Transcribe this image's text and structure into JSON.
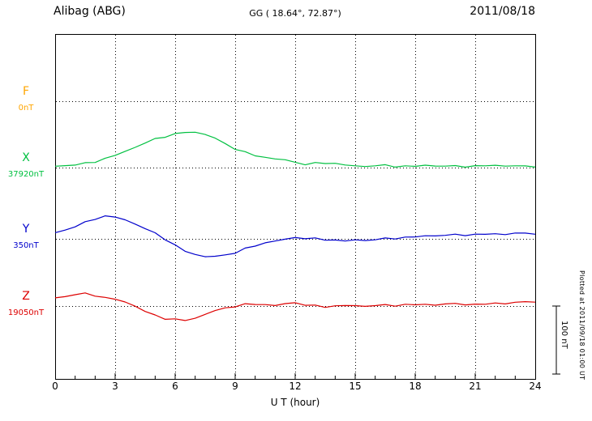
{
  "header": {
    "station": "Alibag (ABG)",
    "coords": "GG ( 18.64°,  72.87°)",
    "date": "2011/08/18"
  },
  "axis": {
    "xlabel": "U T (hour)",
    "ticks": [
      "0",
      "3",
      "6",
      "9",
      "12",
      "15",
      "18",
      "21",
      "24"
    ]
  },
  "channels": [
    {
      "label": "F",
      "value": "0nT",
      "color": "#FFA500"
    },
    {
      "label": "X",
      "value": "37920nT",
      "color": "#00C040"
    },
    {
      "label": "Y",
      "value": "350nT",
      "color": "#0000CC"
    },
    {
      "label": "Z",
      "value": "19050nT",
      "color": "#DD0000"
    }
  ],
  "scale_bar": {
    "label": "100 nT"
  },
  "footnote": "Plotted at 2011/09/18 01:00 UT",
  "chart_data": {
    "type": "line",
    "title": "Alibag (ABG) magnetogram 2011/08/18",
    "xlabel": "U T (hour)",
    "xlim": [
      0,
      24
    ],
    "x_tick_step_hours": 3,
    "scale_bar_nT": 100,
    "grid": "dotted vertical lines every 3 h, dotted horizontal baseline per channel",
    "x_hours": [
      0,
      0.5,
      1,
      1.5,
      2,
      2.5,
      3,
      3.5,
      4,
      4.5,
      5,
      5.5,
      6,
      6.5,
      7,
      7.5,
      8,
      8.5,
      9,
      9.5,
      10,
      10.5,
      11,
      11.5,
      12,
      12.5,
      13,
      13.5,
      14,
      14.5,
      15,
      15.5,
      16,
      16.5,
      17,
      17.5,
      18,
      18.5,
      19,
      19.5,
      20,
      20.5,
      21,
      21.5,
      22,
      22.5,
      23,
      23.5,
      24
    ],
    "series": [
      {
        "name": "F",
        "baseline_nT": 0,
        "offsets_nT": []
      },
      {
        "name": "X",
        "baseline_nT": 37920,
        "offsets_nT": [
          2,
          3,
          4,
          6,
          9,
          13,
          18,
          24,
          30,
          36,
          42,
          46,
          49,
          52,
          52,
          49,
          43,
          35,
          28,
          22,
          18,
          15,
          13,
          11,
          8,
          5,
          6,
          7,
          6,
          4,
          2,
          2,
          3,
          3,
          2,
          2,
          2,
          3,
          3,
          2,
          2,
          2,
          2,
          3,
          3,
          3,
          2,
          2,
          2
        ]
      },
      {
        "name": "Y",
        "baseline_nT": 350,
        "offsets_nT": [
          9,
          13,
          18,
          24,
          30,
          33,
          32,
          28,
          22,
          15,
          8,
          0,
          -10,
          -18,
          -23,
          -26,
          -26,
          -24,
          -20,
          -15,
          -10,
          -6,
          -3,
          -1,
          2,
          1,
          0,
          -1,
          -2,
          -3,
          -2,
          -2,
          -1,
          0,
          1,
          2,
          3,
          4,
          5,
          5,
          6,
          6,
          6,
          7,
          7,
          7,
          8,
          8,
          8
        ]
      },
      {
        "name": "Z",
        "baseline_nT": 19050,
        "offsets_nT": [
          12,
          14,
          17,
          18,
          16,
          12,
          10,
          6,
          0,
          -8,
          -14,
          -18,
          -20,
          -21,
          -18,
          -12,
          -7,
          -3,
          0,
          2,
          3,
          2,
          1,
          3,
          5,
          2,
          0,
          -1,
          0,
          1,
          0,
          0,
          1,
          1,
          1,
          2,
          2,
          2,
          2,
          3,
          3,
          3,
          2,
          3,
          4,
          4,
          5,
          6,
          7
        ]
      }
    ]
  }
}
